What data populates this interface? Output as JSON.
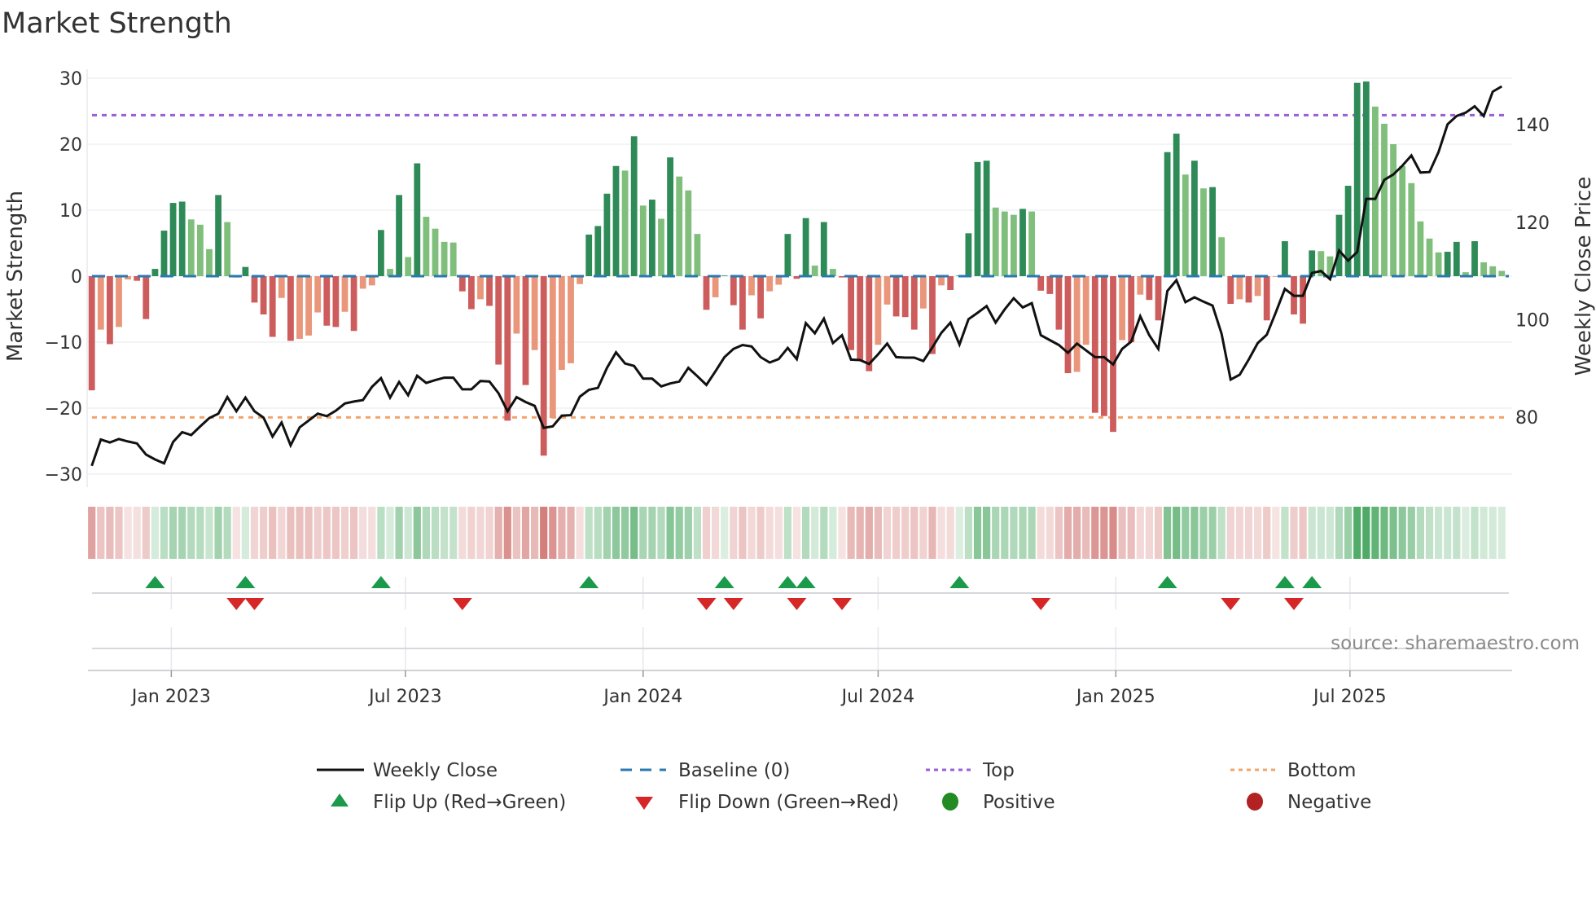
{
  "chart_data": {
    "type": "bar",
    "title": "Market Strength",
    "ylabel": "Market Strength",
    "y2label": "Weekly Close Price",
    "source": "source: sharemaestro.com",
    "ylim": [
      -30,
      30
    ],
    "y2lim": [
      68.7,
      149.3
    ],
    "yticks": [
      "30",
      "20",
      "10",
      "0",
      "−10",
      "−20",
      "−30"
    ],
    "ytick_values": [
      30,
      20,
      10,
      0,
      -10,
      -20,
      -30
    ],
    "y2ticks": [
      "80",
      "100",
      "120",
      "140"
    ],
    "y2tick_values": [
      80,
      100,
      120,
      140
    ],
    "xticks": [
      "Jan 2023",
      "Jul 2023",
      "Jan 2024",
      "Jul 2024",
      "Jan 2025",
      "Jul 2025"
    ],
    "xtick_weeks_from_start": [
      8.8,
      34.7,
      61.0,
      87.0,
      113.3,
      139.2
    ],
    "top_level": 24.4,
    "bottom_level": -21.4,
    "baseline": 0,
    "grid": true,
    "legend_position": "bottom-center",
    "colors": {
      "rising_positive": "#2e8b57",
      "falling_positive": "#7fbf7b",
      "falling_negative": "#cd5c5c",
      "rising_negative": "#e9967a",
      "price_line": "#111111",
      "baseline": "#2a78b0",
      "top": "#9b5fd6",
      "bottom": "#f2a46a",
      "flip_up": "#1a9a4a",
      "flip_down": "#d62728",
      "positive": "#228b22",
      "negative": "#b22222"
    },
    "strength": [
      -17.3,
      -8.1,
      -10.3,
      -7.7,
      -0.5,
      -0.7,
      -6.5,
      1.1,
      6.9,
      11.1,
      11.3,
      8.6,
      7.8,
      4.1,
      12.3,
      8.2,
      -0.2,
      1.4,
      -4.0,
      -5.8,
      -9.2,
      -3.3,
      -9.8,
      -9.5,
      -9.0,
      -5.5,
      -7.5,
      -7.7,
      -5.4,
      -8.3,
      -1.9,
      -1.4,
      7.0,
      1.1,
      12.3,
      2.9,
      17.1,
      9.0,
      7.2,
      5.2,
      5.1,
      -2.3,
      -5.0,
      -3.5,
      -4.5,
      -13.4,
      -21.9,
      -8.7,
      -16.5,
      -11.2,
      -27.2,
      -21.5,
      -14.2,
      -13.2,
      -1.2,
      6.3,
      7.6,
      12.5,
      16.7,
      16.0,
      21.2,
      10.7,
      11.6,
      8.7,
      18.0,
      15.1,
      13.0,
      6.4,
      -5.1,
      -3.2,
      0.1,
      -4.4,
      -8.1,
      -2.9,
      -6.4,
      -2.3,
      -1.3,
      6.4,
      -0.4,
      8.8,
      1.6,
      8.2,
      1.1,
      -0.2,
      -11.2,
      -12.7,
      -14.4,
      -10.4,
      -4.3,
      -6.1,
      -6.2,
      -8.1,
      -4.9,
      -11.8,
      -1.4,
      -2.1,
      0.1,
      6.5,
      17.3,
      17.5,
      10.4,
      9.8,
      9.3,
      10.2,
      9.8,
      -2.2,
      -2.7,
      -8.1,
      -14.7,
      -14.5,
      -10.4,
      -20.7,
      -21.2,
      -23.6,
      -9.7,
      -10.0,
      -2.8,
      -3.6,
      -6.7,
      18.8,
      21.6,
      15.4,
      17.5,
      13.3,
      13.5,
      5.9,
      -4.2,
      -3.5,
      -4.0,
      -3.0,
      -6.7,
      -0.1,
      5.3,
      -5.8,
      -7.2,
      3.9,
      3.8,
      3.0,
      9.3,
      13.7,
      29.3,
      29.5,
      25.7,
      23.1,
      20.0,
      16.7,
      14.1,
      8.3,
      5.7,
      3.6,
      3.7,
      5.2,
      0.6,
      5.3,
      2.1,
      1.5,
      0.8
    ],
    "weekly_close": [
      70.0,
      75.4,
      74.8,
      75.5,
      75.0,
      74.6,
      72.3,
      71.3,
      70.5,
      74.9,
      76.9,
      76.3,
      78.1,
      79.8,
      80.7,
      84.1,
      81.2,
      84.0,
      81.2,
      79.9,
      76.0,
      78.9,
      74.2,
      77.9,
      79.3,
      80.7,
      80.2,
      81.3,
      82.8,
      83.2,
      83.5,
      86.2,
      88.0,
      84.0,
      87.2,
      84.5,
      88.5,
      87.0,
      87.6,
      88.1,
      88.1,
      85.7,
      85.7,
      87.4,
      87.3,
      84.9,
      81.2,
      84.1,
      83.1,
      82.3,
      77.8,
      78.1,
      80.3,
      80.4,
      84.2,
      85.6,
      86.0,
      90.1,
      93.3,
      91.0,
      90.5,
      87.9,
      87.9,
      86.3,
      86.9,
      87.3,
      90.1,
      88.4,
      86.6,
      89.4,
      92.3,
      94.0,
      94.8,
      94.5,
      92.3,
      91.2,
      91.9,
      94.2,
      91.9,
      99.3,
      97.2,
      100.2,
      95.2,
      96.8,
      91.8,
      91.7,
      90.9,
      92.9,
      95.1,
      92.3,
      92.2,
      92.2,
      91.5,
      94.3,
      97.3,
      99.4,
      94.9,
      100.1,
      101.4,
      102.8,
      99.4,
      102.1,
      104.4,
      102.5,
      103.4,
      96.8,
      95.8,
      94.8,
      93.2,
      95.1,
      93.7,
      92.3,
      92.3,
      90.8,
      94.0,
      95.5,
      100.7,
      96.8,
      94.0,
      105.9,
      108.1,
      103.6,
      104.6,
      103.7,
      102.9,
      97.1,
      87.7,
      88.7,
      91.8,
      95.2,
      96.9,
      101.5,
      106.3,
      104.9,
      104.9,
      109.6,
      110.0,
      108.3,
      114.2,
      112.1,
      113.9,
      124.8,
      124.8,
      128.7,
      129.8,
      131.6,
      133.7,
      130.2,
      130.3,
      134.4,
      140.1,
      141.8,
      142.5,
      143.8,
      141.8,
      146.8,
      147.9
    ],
    "flips_up": [
      7,
      17,
      32,
      55,
      70,
      77,
      79,
      96,
      119,
      132,
      135
    ],
    "flips_down": [
      16,
      18,
      41,
      68,
      71,
      78,
      83,
      105,
      126,
      133
    ],
    "legend": [
      {
        "label": "Weekly Close",
        "kind": "line"
      },
      {
        "label": "Baseline (0)",
        "kind": "dashed"
      },
      {
        "label": "Top",
        "kind": "dotted-top"
      },
      {
        "label": "Bottom",
        "kind": "dotted-bottom"
      },
      {
        "label": "Flip Up (Red→Green)",
        "kind": "triangle-up"
      },
      {
        "label": "Flip Down (Green→Red)",
        "kind": "triangle-down"
      },
      {
        "label": "Positive",
        "kind": "dot-positive"
      },
      {
        "label": "Negative",
        "kind": "dot-negative"
      }
    ]
  }
}
